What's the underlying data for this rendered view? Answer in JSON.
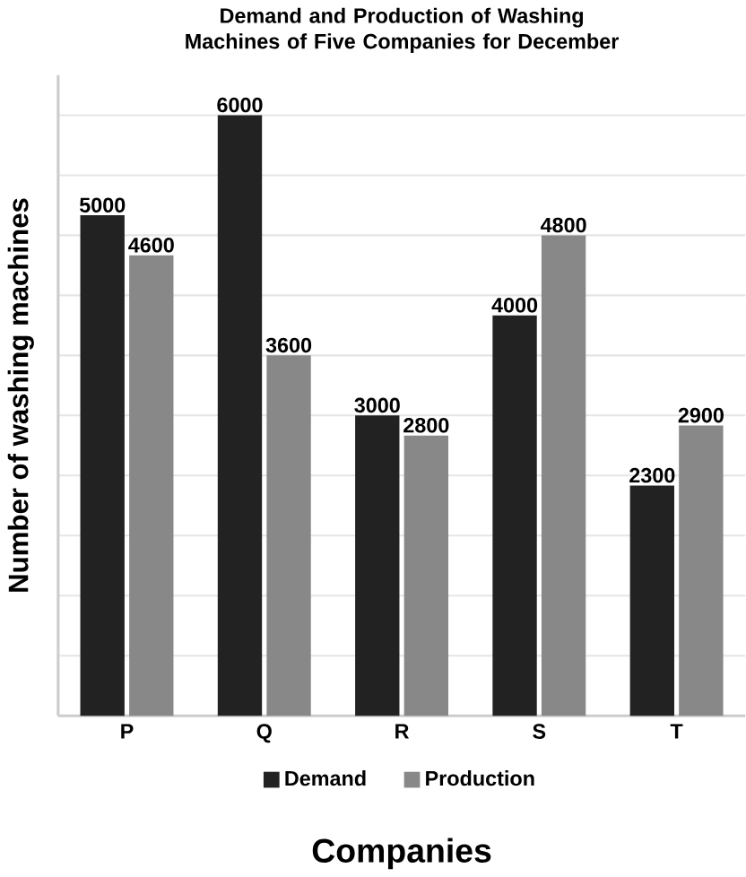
{
  "chart_data": {
    "type": "bar",
    "title": "Demand and Production of Washing Machines of Five Companies for December",
    "xlabel": "Companies",
    "ylabel": "Number of washing machines",
    "categories": [
      "P",
      "Q",
      "R",
      "S",
      "T"
    ],
    "series": [
      {
        "name": "Demand",
        "color": "#222222",
        "values": [
          5000,
          6000,
          3000,
          4000,
          2300
        ]
      },
      {
        "name": "Production",
        "color": "#888888",
        "values": [
          4600,
          3600,
          2800,
          4800,
          2900
        ]
      }
    ],
    "ylim": [
      0,
      6400
    ],
    "yticks": [
      {
        "value": 0,
        "label": null
      },
      {
        "value": 600,
        "label": null
      },
      {
        "value": 1200,
        "label": null
      },
      {
        "value": 1800,
        "label": null
      },
      {
        "value": 2400,
        "label": null
      },
      {
        "value": 3000,
        "label": null
      },
      {
        "value": 3600,
        "label": null
      },
      {
        "value": 4200,
        "label": null
      },
      {
        "value": 4800,
        "label": null
      },
      {
        "value": 5400,
        "label": null
      },
      {
        "value": 6000,
        "label": null
      }
    ],
    "grid": "y",
    "legend": "bottom",
    "data_labels": true,
    "tick_labels": "x"
  }
}
